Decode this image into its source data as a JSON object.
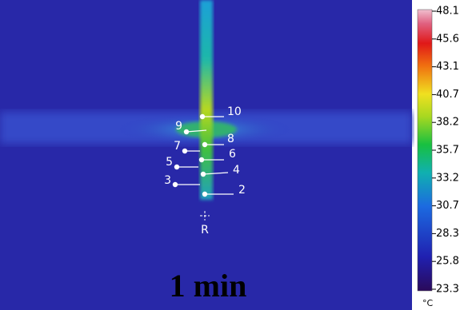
{
  "colorbar": {
    "unit": "°C",
    "ticks": [
      "48.1",
      "45.6",
      "43.1",
      "40.7",
      "38.2",
      "35.7",
      "33.2",
      "30.7",
      "28.3",
      "25.8",
      "23.3"
    ]
  },
  "points": [
    {
      "label": "10"
    },
    {
      "label": "9"
    },
    {
      "label": "8"
    },
    {
      "label": "7"
    },
    {
      "label": "6"
    },
    {
      "label": "5"
    },
    {
      "label": "4"
    },
    {
      "label": "3"
    },
    {
      "label": "2"
    }
  ],
  "reference": "R",
  "caption": "1 min"
}
